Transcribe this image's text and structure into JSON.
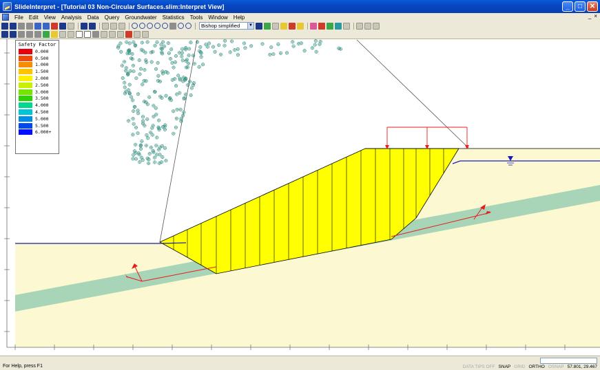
{
  "window": {
    "title": "SlideInterpret - [Tutorial 03 Non-Circular Surfaces.slim:Interpret View]",
    "minimize_glyph": "_",
    "maximize_glyph": "□",
    "close_glyph": "✕"
  },
  "menu": {
    "items": [
      "File",
      "Edit",
      "View",
      "Analysis",
      "Data",
      "Query",
      "Groundwater",
      "Statistics",
      "Tools",
      "Window",
      "Help"
    ],
    "right_glyphs": [
      "_",
      "×"
    ]
  },
  "toolbar": {
    "surface_combo": "Bishop simplified"
  },
  "legend": {
    "title": "Safety Factor",
    "entries": [
      {
        "value": "0.000",
        "color": "#e8000c"
      },
      {
        "value": "0.500",
        "color": "#f44a08"
      },
      {
        "value": "1.000",
        "color": "#f88c00"
      },
      {
        "value": "1.500",
        "color": "#ffc400"
      },
      {
        "value": "2.000",
        "color": "#fff000"
      },
      {
        "value": "2.500",
        "color": "#c8f000"
      },
      {
        "value": "3.000",
        "color": "#74e400"
      },
      {
        "value": "3.500",
        "color": "#2ad400"
      },
      {
        "value": "4.000",
        "color": "#00d890"
      },
      {
        "value": "4.500",
        "color": "#00c4d8"
      },
      {
        "value": "5.000",
        "color": "#008ce8"
      },
      {
        "value": "5.500",
        "color": "#0048f0"
      },
      {
        "value": "6.000+",
        "color": "#0010ff"
      }
    ]
  },
  "drawing": {
    "load_label": "",
    "colors": {
      "soil": "#fcf8d2",
      "weak_layer": "#a8d4b8",
      "sliding_mass": "#ffff00",
      "load": "#e81c1c",
      "water_table": "#1c1cb4",
      "ruler": "#6a6a6a",
      "grid_points": "#2a8a7a"
    },
    "x_axis_ticks": [],
    "y_axis_ticks": []
  },
  "status": {
    "help_text": "For Help, press F1",
    "flags": [
      {
        "label": "DATA TIPS OFF",
        "active": false
      },
      {
        "label": "SNAP",
        "active": true
      },
      {
        "label": "GRID",
        "active": false
      },
      {
        "label": "ORTHO",
        "active": true
      },
      {
        "label": "OSNAP",
        "active": false
      }
    ],
    "coordinates": "57.801, 29.467"
  }
}
